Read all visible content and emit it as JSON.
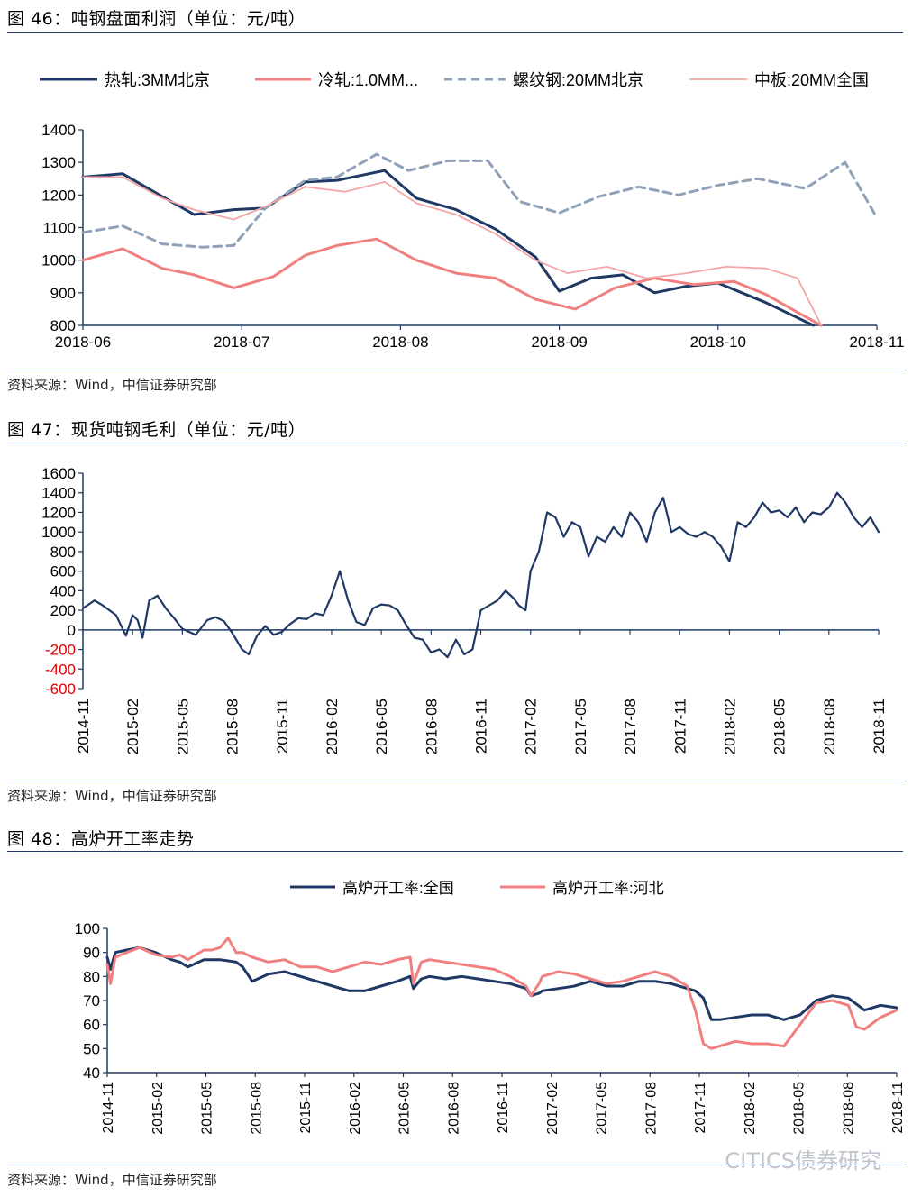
{
  "figures": [
    {
      "title": "图 46：吨钢盘面利润（单位：元/吨）",
      "source": "资料来源：Wind，中信证券研究部"
    },
    {
      "title": "图 47：现货吨钢毛利（单位：元/吨）",
      "source": "资料来源：Wind，中信证券研究部"
    },
    {
      "title": "图 48：高炉开工率走势",
      "source": "资料来源：Wind，中信证券研究部"
    }
  ],
  "watermark": "CITICS债券研究",
  "colors": {
    "navy": "#1f3864",
    "salmon": "#f08080",
    "grayblue": "#8fa1b8",
    "pink": "#f4a6a6",
    "axis": "#1f3864",
    "neg": "#e00000"
  },
  "chart_data": [
    {
      "type": "line",
      "title": "",
      "xlabel": "",
      "ylabel": "",
      "ylim": [
        800,
        1400
      ],
      "yticks": [
        800,
        900,
        1000,
        1100,
        1200,
        1300,
        1400
      ],
      "xlim": [
        0,
        5
      ],
      "xtick_labels": [
        "2018-06",
        "2018-07",
        "2018-08",
        "2018-09",
        "2018-10",
        "2018-11"
      ],
      "legend": "top",
      "grid": false,
      "series": [
        {
          "name": "热轧:3MM北京",
          "color": "#1f3864",
          "dash": "",
          "width": 3,
          "x": [
            0,
            0.25,
            0.5,
            0.7,
            0.95,
            1.15,
            1.4,
            1.6,
            1.9,
            2.1,
            2.35,
            2.6,
            2.85,
            3.0,
            3.2,
            3.4,
            3.6,
            3.8,
            4.0,
            4.3,
            4.6
          ],
          "y": [
            1255,
            1265,
            1195,
            1140,
            1155,
            1160,
            1240,
            1245,
            1275,
            1190,
            1155,
            1095,
            1010,
            905,
            945,
            955,
            900,
            920,
            930,
            870,
            785
          ]
        },
        {
          "name": "冷轧:1.0MM...",
          "color": "#f08080",
          "dash": "",
          "width": 3,
          "x": [
            0,
            0.25,
            0.5,
            0.7,
            0.95,
            1.2,
            1.4,
            1.6,
            1.85,
            2.1,
            2.35,
            2.6,
            2.85,
            3.1,
            3.35,
            3.6,
            3.85,
            4.1,
            4.3,
            4.5,
            4.65
          ],
          "y": [
            1000,
            1035,
            975,
            955,
            915,
            950,
            1015,
            1045,
            1065,
            1000,
            960,
            945,
            880,
            850,
            915,
            945,
            925,
            935,
            895,
            840,
            800
          ]
        },
        {
          "name": "螺纹钢:20MM北京",
          "color": "#8fa1b8",
          "dash": "9,6",
          "width": 3,
          "x": [
            0,
            0.25,
            0.5,
            0.75,
            0.95,
            1.15,
            1.4,
            1.6,
            1.85,
            2.05,
            2.3,
            2.55,
            2.75,
            3.0,
            3.25,
            3.5,
            3.75,
            4.0,
            4.25,
            4.55,
            4.8,
            5.0
          ],
          "y": [
            1085,
            1105,
            1050,
            1040,
            1045,
            1160,
            1245,
            1255,
            1325,
            1275,
            1305,
            1305,
            1180,
            1145,
            1195,
            1225,
            1200,
            1230,
            1250,
            1220,
            1300,
            1130
          ]
        },
        {
          "name": "中板:20MM全国",
          "color": "#f4a6a6",
          "dash": "",
          "width": 1.8,
          "x": [
            0,
            0.25,
            0.5,
            0.7,
            0.95,
            1.15,
            1.4,
            1.65,
            1.9,
            2.1,
            2.35,
            2.6,
            2.85,
            3.05,
            3.3,
            3.55,
            3.8,
            4.05,
            4.3,
            4.5,
            4.65
          ],
          "y": [
            1255,
            1255,
            1190,
            1155,
            1125,
            1165,
            1225,
            1210,
            1240,
            1175,
            1140,
            1080,
            1000,
            960,
            980,
            945,
            960,
            980,
            975,
            945,
            800
          ]
        }
      ]
    },
    {
      "type": "line",
      "title": "",
      "xlabel": "",
      "ylabel": "",
      "ylim": [
        -600,
        1600
      ],
      "yticks": [
        -600,
        -400,
        -200,
        0,
        200,
        400,
        600,
        800,
        1000,
        1200,
        1400,
        1600
      ],
      "xlim": [
        0,
        48
      ],
      "xtick_labels": [
        "2014-11",
        "2015-02",
        "2015-05",
        "2015-08",
        "2015-11",
        "2016-02",
        "2016-05",
        "2016-08",
        "2016-11",
        "2017-02",
        "2017-05",
        "2017-08",
        "2017-11",
        "2018-02",
        "2018-05",
        "2018-08",
        "2018-11"
      ],
      "grid": false,
      "series": [
        {
          "name": "",
          "color": "#1f3864",
          "width": 2.2,
          "x": [
            0,
            0.7,
            1.2,
            2,
            2.6,
            3,
            3.3,
            3.6,
            4,
            4.5,
            5,
            5.5,
            6,
            6.8,
            7.5,
            8,
            8.5,
            9,
            9.6,
            10,
            10.5,
            11,
            11.5,
            12,
            12.5,
            13,
            13.5,
            14,
            14.5,
            15,
            15.5,
            16,
            16.5,
            17,
            17.5,
            18,
            18.5,
            19,
            19.5,
            20,
            20.5,
            21,
            21.5,
            22,
            22.5,
            23,
            23.5,
            24,
            24.5,
            25,
            25.5,
            26,
            26.3,
            26.7,
            27,
            27.5,
            28,
            28.5,
            29,
            29.5,
            30,
            30.5,
            31,
            31.5,
            32,
            32.5,
            33,
            33.5,
            34,
            34.5,
            35,
            35.5,
            36,
            36.5,
            37,
            37.5,
            38,
            38.5,
            39,
            39.5,
            40,
            40.5,
            41,
            41.5,
            42,
            42.5,
            43,
            43.5,
            44,
            44.5,
            45,
            45.5,
            46,
            46.5,
            47,
            47.5,
            48
          ],
          "y": [
            220,
            300,
            250,
            150,
            -60,
            150,
            100,
            -80,
            300,
            350,
            220,
            120,
            10,
            -50,
            100,
            130,
            90,
            -30,
            -200,
            -250,
            -60,
            40,
            -50,
            -20,
            60,
            120,
            110,
            170,
            150,
            350,
            600,
            300,
            80,
            50,
            220,
            260,
            250,
            200,
            50,
            -80,
            -100,
            -230,
            -200,
            -280,
            -100,
            -250,
            -200,
            200,
            250,
            300,
            400,
            320,
            250,
            200,
            600,
            800,
            1200,
            1150,
            950,
            1100,
            1050,
            750,
            950,
            900,
            1050,
            950,
            1200,
            1100,
            900,
            1200,
            1350,
            1000,
            1050,
            980,
            950,
            1000,
            950,
            850,
            700,
            1100,
            1050,
            1150,
            1300,
            1200,
            1220,
            1150,
            1250,
            1100,
            1200,
            1180,
            1250,
            1400,
            1300,
            1150,
            1050,
            1150,
            1000
          ]
        }
      ]
    },
    {
      "type": "line",
      "title": "",
      "xlabel": "",
      "ylabel": "",
      "ylim": [
        40,
        100
      ],
      "yticks": [
        40,
        50,
        60,
        70,
        80,
        90,
        100
      ],
      "xlim": [
        0,
        49
      ],
      "xtick_labels": [
        "2014-11",
        "2015-02",
        "2015-05",
        "2015-08",
        "2015-11",
        "2016-02",
        "2016-05",
        "2016-08",
        "2016-11",
        "2017-02",
        "2017-05",
        "2017-08",
        "2017-11",
        "2018-02",
        "2018-05",
        "2018-08",
        "2018-11"
      ],
      "legend": "top",
      "grid": false,
      "series": [
        {
          "name": "高炉开工率:全国",
          "color": "#1f3864",
          "width": 3,
          "x": [
            0,
            0.2,
            0.5,
            1.2,
            2,
            3,
            4,
            4.5,
            5,
            6,
            7,
            8,
            8.4,
            9,
            10,
            11,
            12,
            13,
            14,
            15,
            16,
            17,
            18,
            18.8,
            19,
            19.5,
            20,
            21,
            22,
            23,
            24,
            25,
            26,
            26.3,
            26.8,
            27,
            28,
            29,
            30,
            31,
            32,
            33,
            34,
            35,
            36,
            36.5,
            37,
            37.5,
            38,
            39,
            40,
            41,
            42,
            43,
            44,
            45,
            46,
            47,
            48,
            49
          ],
          "y": [
            88,
            83,
            90,
            91,
            92,
            90,
            87,
            86,
            84,
            87,
            87,
            86,
            84,
            78,
            81,
            82,
            80,
            78,
            76,
            74,
            74,
            76,
            78,
            80,
            75,
            79,
            80,
            79,
            80,
            79,
            78,
            77,
            75,
            72,
            73,
            74,
            75,
            76,
            78,
            76,
            76,
            78,
            78,
            77,
            75,
            74,
            71,
            62,
            62,
            63,
            64,
            64,
            62,
            64,
            70,
            72,
            71,
            66,
            68,
            67
          ]
        },
        {
          "name": "高炉开工率:河北",
          "color": "#f08080",
          "width": 3,
          "x": [
            0,
            0.2,
            0.5,
            1.2,
            2,
            3,
            4,
            4.5,
            5,
            6,
            6.5,
            7,
            7.5,
            8,
            8.4,
            9,
            10,
            11,
            12,
            13,
            14,
            15,
            16,
            17,
            18,
            18.8,
            19,
            19.5,
            20,
            21,
            22,
            23,
            24,
            25,
            26,
            26.3,
            26.8,
            27,
            28,
            29,
            30,
            31,
            32,
            33,
            34,
            35,
            36,
            36.5,
            37,
            37.5,
            38,
            39,
            40,
            41,
            42,
            43,
            44,
            45,
            46,
            46.5,
            47,
            48,
            49
          ],
          "y": [
            85,
            77,
            88,
            90,
            92,
            89,
            88,
            89,
            87,
            91,
            91,
            92,
            96,
            90,
            90,
            88,
            86,
            87,
            84,
            84,
            82,
            84,
            86,
            85,
            87,
            88,
            77,
            86,
            87,
            86,
            85,
            84,
            83,
            80,
            76,
            72,
            77,
            80,
            82,
            81,
            79,
            77,
            78,
            80,
            82,
            80,
            76,
            66,
            52,
            50,
            51,
            53,
            52,
            52,
            51,
            60,
            69,
            70,
            68,
            59,
            58,
            63,
            66
          ]
        }
      ]
    }
  ]
}
